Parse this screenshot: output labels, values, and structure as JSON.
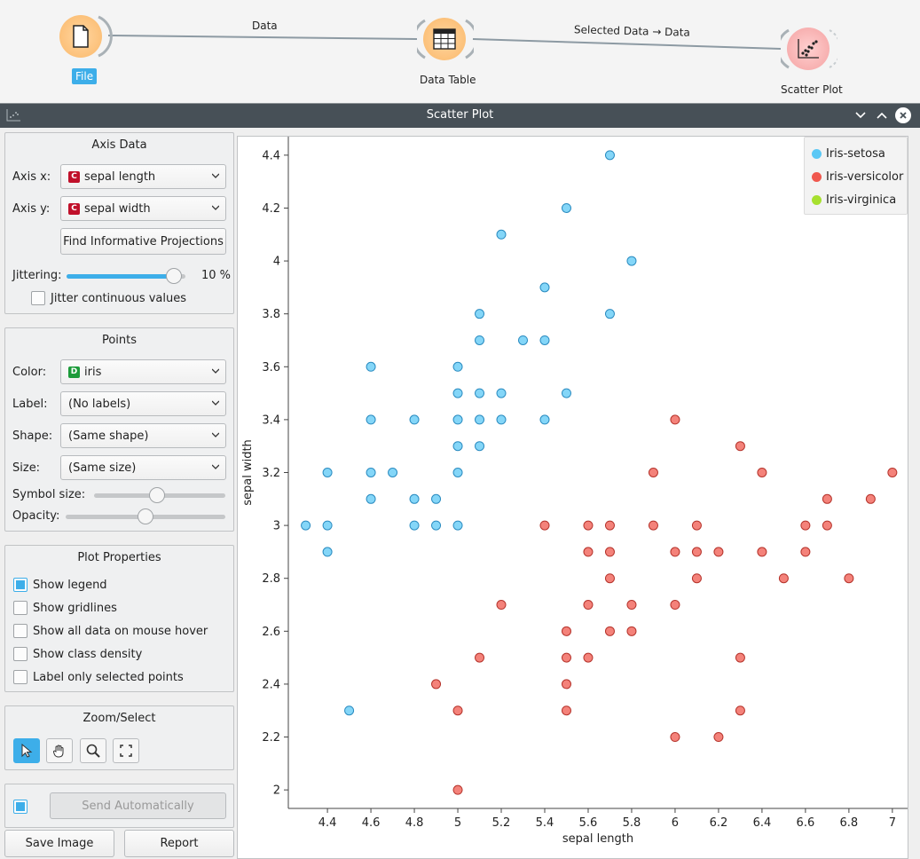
{
  "workflow": {
    "nodes": [
      {
        "name": "File",
        "icon": "file-icon",
        "selected": true
      },
      {
        "name": "Data Table",
        "icon": "data-table-icon",
        "selected": false
      },
      {
        "name": "Scatter Plot",
        "icon": "scatter-plot-icon",
        "selected": false
      }
    ],
    "links": [
      {
        "label": "Data"
      },
      {
        "label": "Selected Data → Data"
      }
    ]
  },
  "window": {
    "title": "Scatter Plot",
    "buttons": [
      "minimize-icon",
      "maximize-icon",
      "close-icon"
    ]
  },
  "axis_data": {
    "title": "Axis Data",
    "x_label": "Axis x:",
    "x_value": "sepal length",
    "x_badge": "C",
    "y_label": "Axis y:",
    "y_value": "sepal width",
    "y_badge": "C",
    "find_button": "Find Informative Projections",
    "jitter_label": "Jittering:",
    "jitter_value": "10 %",
    "jitter_level": 0.9,
    "jitter_continuous": "Jitter continuous values",
    "jitter_continuous_checked": false
  },
  "points": {
    "title": "Points",
    "color_label": "Color:",
    "color_value": "iris",
    "color_badge": "D",
    "label_label": "Label:",
    "label_value": "(No labels)",
    "shape_label": "Shape:",
    "shape_value": "(Same shape)",
    "size_label": "Size:",
    "size_value": "(Same size)",
    "symbol_size_label": "Symbol size:",
    "symbol_size_level": 0.48,
    "opacity_label": "Opacity:",
    "opacity_level": 0.5
  },
  "plot_properties": {
    "title": "Plot Properties",
    "options": [
      {
        "label": "Show legend",
        "checked": true
      },
      {
        "label": "Show gridlines",
        "checked": false
      },
      {
        "label": "Show all data on mouse hover",
        "checked": false
      },
      {
        "label": "Show class density",
        "checked": false
      },
      {
        "label": "Label only selected points",
        "checked": false
      }
    ]
  },
  "zoom_select": {
    "title": "Zoom/Select",
    "tools": [
      "pointer-icon",
      "pan-hand-icon",
      "zoom-icon",
      "reset-zoom-icon"
    ],
    "active_tool": 0
  },
  "send": {
    "auto_checked": true,
    "button": "Send Automatically"
  },
  "footer": {
    "save_image": "Save Image",
    "report": "Report"
  },
  "colors": {
    "accent": "#3daee9",
    "titlebar": "#475057",
    "setosa": "#5bc8f5",
    "versicolor": "#f0584e",
    "virginica": "#a7e02f"
  },
  "chart_data": {
    "type": "scatter",
    "xlabel": "sepal length",
    "ylabel": "sepal width",
    "xlim": [
      4.22,
      7.07
    ],
    "ylim": [
      1.93,
      4.47
    ],
    "xticks": [
      "4.4",
      "4.6",
      "4.8",
      "5",
      "5.2",
      "5.4",
      "5.6",
      "5.8",
      "6",
      "6.2",
      "6.4",
      "6.6",
      "6.8",
      "7"
    ],
    "yticks": [
      "2",
      "2.2",
      "2.4",
      "2.6",
      "2.8",
      "3",
      "3.2",
      "3.4",
      "3.6",
      "3.8",
      "4",
      "4.2",
      "4.4"
    ],
    "grid": false,
    "legend_position": "top-right",
    "series": [
      {
        "name": "Iris-setosa",
        "color": "#5bc8f5",
        "points": [
          [
            4.3,
            3.0
          ],
          [
            4.4,
            3.0
          ],
          [
            4.4,
            3.2
          ],
          [
            4.4,
            2.9
          ],
          [
            4.5,
            2.3
          ],
          [
            4.6,
            3.1
          ],
          [
            4.6,
            3.2
          ],
          [
            4.6,
            3.4
          ],
          [
            4.6,
            3.6
          ],
          [
            4.7,
            3.2
          ],
          [
            4.8,
            3.0
          ],
          [
            4.8,
            3.1
          ],
          [
            4.8,
            3.4
          ],
          [
            4.9,
            3.0
          ],
          [
            4.9,
            3.1
          ],
          [
            5.0,
            3.0
          ],
          [
            5.0,
            3.2
          ],
          [
            5.0,
            3.3
          ],
          [
            5.0,
            3.4
          ],
          [
            5.0,
            3.5
          ],
          [
            5.0,
            3.6
          ],
          [
            5.1,
            3.3
          ],
          [
            5.1,
            3.4
          ],
          [
            5.1,
            3.5
          ],
          [
            5.1,
            3.7
          ],
          [
            5.1,
            3.8
          ],
          [
            5.2,
            3.4
          ],
          [
            5.2,
            3.5
          ],
          [
            5.2,
            4.1
          ],
          [
            5.3,
            3.7
          ],
          [
            5.4,
            3.4
          ],
          [
            5.4,
            3.7
          ],
          [
            5.4,
            3.9
          ],
          [
            5.5,
            3.5
          ],
          [
            5.5,
            4.2
          ],
          [
            5.7,
            3.8
          ],
          [
            5.7,
            4.4
          ],
          [
            5.8,
            4.0
          ]
        ]
      },
      {
        "name": "Iris-versicolor",
        "color": "#f0584e",
        "points": [
          [
            4.9,
            2.4
          ],
          [
            5.0,
            2.0
          ],
          [
            5.0,
            2.3
          ],
          [
            5.1,
            2.5
          ],
          [
            5.2,
            2.7
          ],
          [
            5.5,
            2.3
          ],
          [
            5.5,
            2.4
          ],
          [
            5.5,
            2.5
          ],
          [
            5.5,
            2.6
          ],
          [
            5.6,
            2.5
          ],
          [
            5.6,
            2.7
          ],
          [
            5.6,
            2.9
          ],
          [
            5.6,
            3.0
          ],
          [
            5.7,
            2.6
          ],
          [
            5.7,
            2.8
          ],
          [
            5.7,
            2.9
          ],
          [
            5.7,
            3.0
          ],
          [
            5.8,
            2.6
          ],
          [
            5.8,
            2.7
          ],
          [
            5.9,
            3.0
          ],
          [
            5.9,
            3.2
          ],
          [
            6.0,
            2.2
          ],
          [
            6.0,
            2.7
          ],
          [
            6.0,
            2.9
          ],
          [
            6.0,
            3.4
          ],
          [
            6.1,
            2.8
          ],
          [
            6.1,
            2.9
          ],
          [
            6.1,
            3.0
          ],
          [
            6.2,
            2.2
          ],
          [
            6.2,
            2.9
          ],
          [
            6.3,
            2.3
          ],
          [
            6.3,
            2.5
          ],
          [
            6.3,
            3.3
          ],
          [
            6.4,
            2.9
          ],
          [
            6.4,
            3.2
          ],
          [
            6.5,
            2.8
          ],
          [
            6.6,
            2.9
          ],
          [
            6.6,
            3.0
          ],
          [
            6.7,
            3.0
          ],
          [
            6.7,
            3.1
          ],
          [
            6.8,
            2.8
          ],
          [
            6.9,
            3.1
          ],
          [
            7.0,
            3.2
          ],
          [
            5.4,
            3.0
          ]
        ]
      },
      {
        "name": "Iris-virginica",
        "color": "#a7e02f",
        "points": []
      }
    ]
  }
}
